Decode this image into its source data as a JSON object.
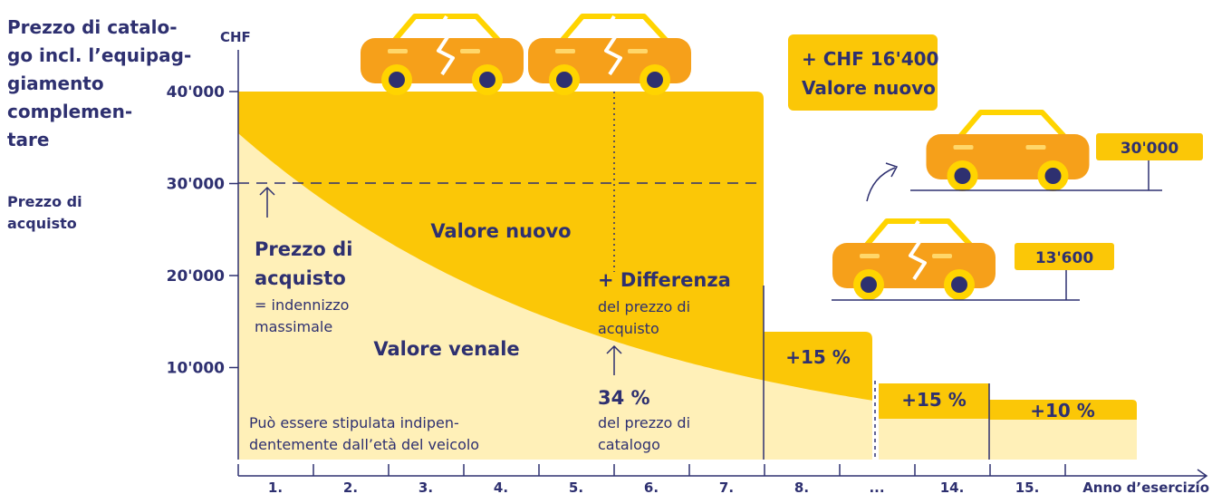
{
  "sidebar": {
    "title_lines": [
      "Prezzo di catalo-",
      "go incl. l’equipag-",
      "giamento",
      "complemen-",
      "tare"
    ],
    "purchase_lines": [
      "Prezzo di",
      "acquisto"
    ]
  },
  "y_axis": {
    "unit": "CHF",
    "ticks": [
      "40'000",
      "30'000",
      "20'000",
      "10'000"
    ]
  },
  "x_axis": {
    "labels": [
      "1.",
      "2.",
      "3.",
      "4.",
      "5.",
      "6.",
      "7.",
      "8.",
      "...",
      "14.",
      "15."
    ],
    "title": "Anno d’esercizio"
  },
  "areas": {
    "new_value": "Valore nuovo",
    "market_value": "Valore venale"
  },
  "annotations": {
    "purchase_price": {
      "title_lines": [
        "Prezzo di",
        "acquisto"
      ],
      "note_lines": [
        "= indennizzo",
        "massimale"
      ]
    },
    "difference": {
      "title": "+ Differenza",
      "note_lines": [
        "del prezzo di",
        "acquisto"
      ]
    },
    "share": {
      "title": "34 %",
      "note_lines": [
        "del prezzo di",
        "catalogo"
      ]
    },
    "footnote_lines": [
      "Può essere stipulata indipen-",
      "dentemente dall’età del veicolo"
    ],
    "bonuses": [
      "+15 %",
      "+15 %",
      "+10 %"
    ]
  },
  "comparison": {
    "box_lines": [
      "+ CHF 16'400",
      "Valore nuovo"
    ],
    "new_car_value": "30'000",
    "damaged_car_value": "13'600"
  }
}
